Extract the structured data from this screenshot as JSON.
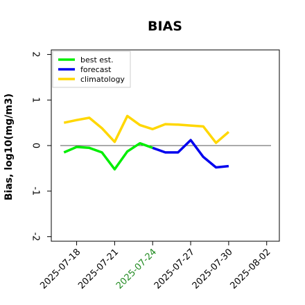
{
  "chart_data": {
    "type": "line",
    "title": "BIAS",
    "ylabel": "Bias, log10(mg/m3)",
    "xlabel": "",
    "ylim": [
      -2.1,
      2.1
    ],
    "yticks": [
      -2,
      -1,
      0,
      1,
      2
    ],
    "ytick_labels": [
      "-2",
      "-1",
      "0",
      "1",
      "2"
    ],
    "xlim": [
      "2025-07-16",
      "2025-08-03"
    ],
    "xticks": [
      {
        "date": "2025-07-18",
        "label": "2025-07-18",
        "color": "#000000"
      },
      {
        "date": "2025-07-21",
        "label": "2025-07-21",
        "color": "#000000"
      },
      {
        "date": "2025-07-24",
        "label": "2025-07-24",
        "color": "#228b22"
      },
      {
        "date": "2025-07-27",
        "label": "2025-07-27",
        "color": "#000000"
      },
      {
        "date": "2025-07-30",
        "label": "2025-07-30",
        "color": "#000000"
      },
      {
        "date": "2025-08-02",
        "label": "2025-08-02",
        "color": "#000000"
      }
    ],
    "zero_line": true,
    "grid": false,
    "legend_position": "top-left",
    "series": [
      {
        "name": "best est.",
        "color": "#00ee00",
        "x": [
          "2025-07-17",
          "2025-07-18",
          "2025-07-19",
          "2025-07-20",
          "2025-07-21",
          "2025-07-22",
          "2025-07-23",
          "2025-07-24"
        ],
        "y": [
          -0.15,
          -0.03,
          -0.05,
          -0.15,
          -0.52,
          -0.13,
          0.05,
          -0.05
        ]
      },
      {
        "name": "forecast",
        "color": "#0000ee",
        "x": [
          "2025-07-24",
          "2025-07-25",
          "2025-07-26",
          "2025-07-27",
          "2025-07-28",
          "2025-07-29",
          "2025-07-30"
        ],
        "y": [
          -0.05,
          -0.15,
          -0.15,
          0.12,
          -0.25,
          -0.48,
          -0.45
        ]
      },
      {
        "name": "climatology",
        "color": "#ffd700",
        "x": [
          "2025-07-17",
          "2025-07-18",
          "2025-07-19",
          "2025-07-20",
          "2025-07-21",
          "2025-07-22",
          "2025-07-23",
          "2025-07-24",
          "2025-07-25",
          "2025-07-26",
          "2025-07-27",
          "2025-07-28",
          "2025-07-29",
          "2025-07-30"
        ],
        "y": [
          0.5,
          0.56,
          0.61,
          0.38,
          0.08,
          0.65,
          0.45,
          0.36,
          0.47,
          0.46,
          0.44,
          0.42,
          0.06,
          0.3
        ]
      }
    ]
  }
}
